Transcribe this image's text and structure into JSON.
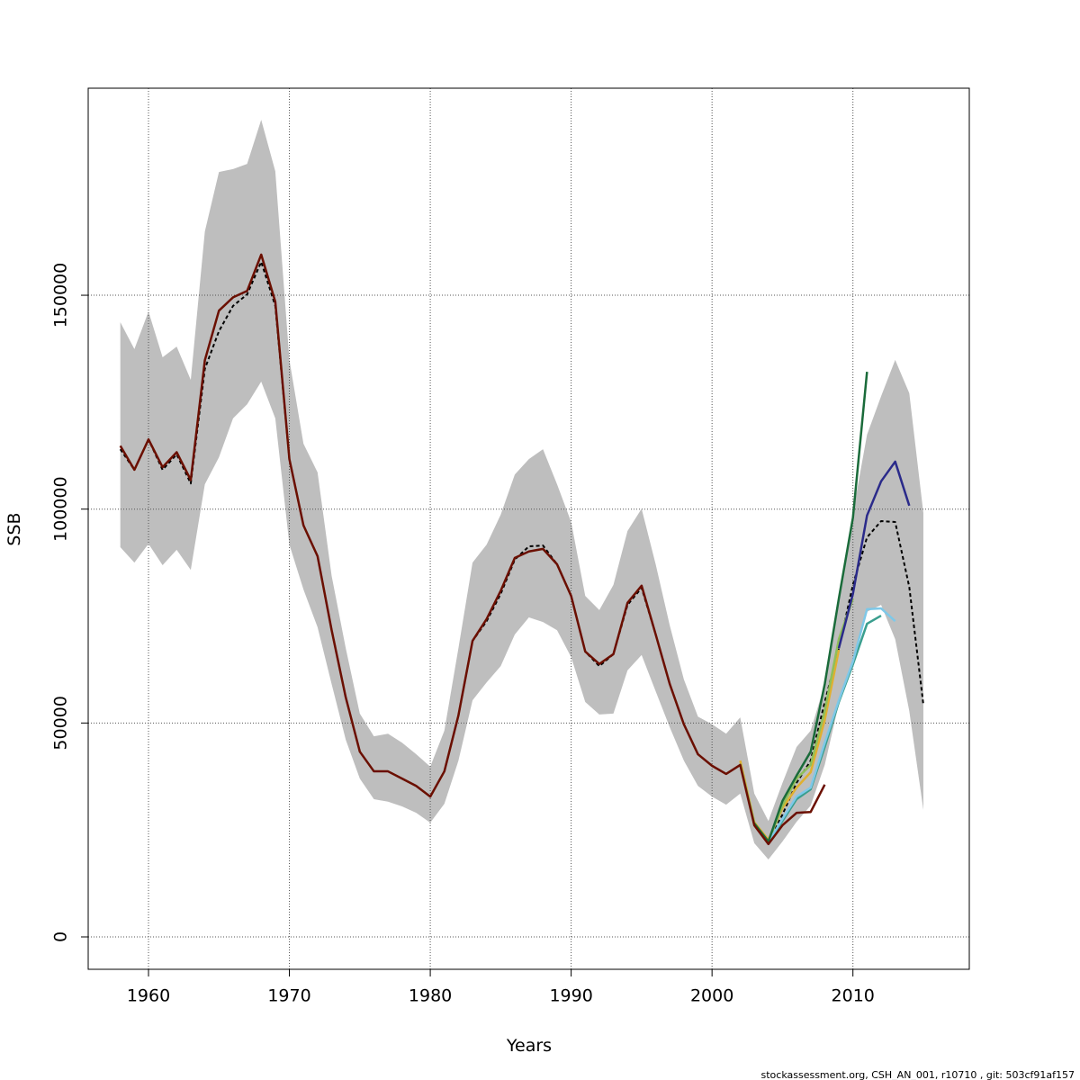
{
  "chart_data": {
    "type": "line",
    "x_label": "Years",
    "y_label": "SSB",
    "footer": "stockassessment.org, CSH_AN_001, r10710 , git: 503cf91af157",
    "xlim": [
      1955.72,
      2018.26
    ],
    "ylim": [
      -7574,
      198400
    ],
    "xticks": [
      1960,
      1970,
      1980,
      1990,
      2000,
      2010
    ],
    "yticks": [
      0,
      50000,
      100000,
      150000
    ],
    "grid": true,
    "x": [
      1958,
      1959,
      1960,
      1961,
      1962,
      1963,
      1964,
      1965,
      1966,
      1967,
      1968,
      1969,
      1970,
      1971,
      1972,
      1973,
      1974,
      1975,
      1976,
      1977,
      1978,
      1979,
      1980,
      1981,
      1982,
      1983,
      1984,
      1985,
      1986,
      1987,
      1988,
      1989,
      1990,
      1991,
      1992,
      1993,
      1994,
      1995,
      1996,
      1997,
      1998,
      1999,
      2000,
      2001,
      2002,
      2003,
      2004,
      2005,
      2006,
      2007,
      2008,
      2009,
      2010,
      2011,
      2012,
      2013,
      2014,
      2015
    ],
    "band": {
      "color": "#bebebe",
      "upper": [
        143700,
        137400,
        146200,
        135500,
        138000,
        130200,
        164900,
        178800,
        179500,
        180700,
        191000,
        179000,
        134900,
        115300,
        108600,
        84400,
        67500,
        52200,
        46900,
        47500,
        45400,
        42700,
        39800,
        48200,
        67500,
        87500,
        91700,
        98700,
        108100,
        111700,
        114000,
        105800,
        97000,
        79700,
        76400,
        82300,
        94900,
        100100,
        87100,
        72800,
        60200,
        51500,
        49700,
        47500,
        51300,
        33500,
        27100,
        36000,
        44400,
        48200,
        59100,
        80200,
        99100,
        117400,
        126400,
        134900,
        127100,
        99100
      ],
      "lower": [
        91100,
        87500,
        91900,
        86900,
        90500,
        85800,
        105800,
        112100,
        121200,
        124500,
        129800,
        121200,
        91700,
        81200,
        72400,
        59100,
        46100,
        37000,
        32200,
        31600,
        30500,
        29000,
        26700,
        31100,
        41200,
        55300,
        59500,
        63300,
        70700,
        74700,
        73600,
        71700,
        65400,
        54900,
        52000,
        52200,
        62300,
        65900,
        57400,
        49000,
        41200,
        35300,
        32800,
        30900,
        33500,
        21900,
        18100,
        22300,
        26900,
        30700,
        40200,
        54500,
        64400,
        76000,
        77600,
        69600,
        52800,
        29700
      ]
    },
    "series": [
      {
        "color": "#000000",
        "dashed": true,
        "values": [
          114000,
          109200,
          116300,
          109200,
          112800,
          106000,
          132800,
          141600,
          147500,
          150200,
          157800,
          147500,
          111700,
          96200,
          89000,
          71700,
          56000,
          43300,
          38700,
          38700,
          37000,
          35300,
          32800,
          38700,
          51800,
          69200,
          73800,
          80200,
          88200,
          91300,
          91500,
          87100,
          79700,
          66700,
          63300,
          66100,
          77600,
          81600,
          70700,
          59100,
          49700,
          42700,
          40000,
          38100,
          40200,
          26500,
          22100,
          28600,
          36000,
          41200,
          54900,
          67500,
          82300,
          93400,
          97200,
          97000,
          81800,
          54300
        ]
      },
      {
        "color": "#e0b030",
        "values": [
          null,
          null,
          null,
          null,
          null,
          null,
          null,
          null,
          null,
          null,
          null,
          null,
          null,
          null,
          null,
          null,
          null,
          null,
          null,
          null,
          null,
          null,
          null,
          null,
          null,
          null,
          null,
          null,
          null,
          null,
          null,
          null,
          null,
          null,
          null,
          null,
          null,
          null,
          null,
          null,
          null,
          null,
          null,
          null,
          41200,
          26800,
          22700,
          30100,
          34900,
          38500,
          50700,
          67100,
          null,
          null,
          null,
          null,
          null,
          null
        ]
      },
      {
        "color": "#8fbf5a",
        "values": [
          null,
          null,
          null,
          null,
          null,
          null,
          null,
          null,
          null,
          null,
          null,
          null,
          null,
          null,
          null,
          null,
          null,
          null,
          null,
          null,
          null,
          null,
          null,
          null,
          null,
          null,
          null,
          null,
          null,
          null,
          null,
          null,
          null,
          null,
          null,
          null,
          null,
          null,
          null,
          null,
          null,
          null,
          null,
          null,
          40500,
          26600,
          22200,
          30700,
          37000,
          40200,
          52800,
          69600,
          79100,
          null,
          null,
          null,
          null,
          null
        ]
      },
      {
        "color": "#3a9e8e",
        "values": [
          null,
          null,
          null,
          null,
          null,
          null,
          null,
          null,
          null,
          null,
          null,
          null,
          null,
          null,
          null,
          null,
          null,
          null,
          null,
          null,
          null,
          null,
          null,
          null,
          null,
          null,
          null,
          null,
          null,
          null,
          null,
          null,
          null,
          null,
          null,
          null,
          null,
          null,
          null,
          null,
          null,
          null,
          null,
          null,
          null,
          26300,
          22100,
          27100,
          32200,
          34500,
          44400,
          54900,
          63700,
          73200,
          75100,
          null,
          null,
          null
        ]
      },
      {
        "color": "#7ec8e8",
        "values": [
          null,
          null,
          null,
          null,
          null,
          null,
          null,
          null,
          null,
          null,
          null,
          null,
          null,
          null,
          null,
          null,
          null,
          null,
          null,
          null,
          null,
          null,
          null,
          null,
          null,
          null,
          null,
          null,
          null,
          null,
          null,
          null,
          null,
          null,
          null,
          null,
          null,
          null,
          null,
          null,
          null,
          null,
          null,
          null,
          null,
          26300,
          22100,
          27600,
          32800,
          34900,
          45400,
          55300,
          64400,
          76600,
          76800,
          73800,
          null,
          null
        ]
      },
      {
        "color": "#1a6b3a",
        "values": [
          null,
          null,
          null,
          null,
          null,
          null,
          null,
          null,
          null,
          null,
          null,
          null,
          null,
          null,
          null,
          null,
          null,
          null,
          null,
          null,
          null,
          null,
          null,
          null,
          null,
          null,
          null,
          null,
          null,
          null,
          null,
          null,
          null,
          null,
          null,
          null,
          null,
          null,
          null,
          null,
          null,
          null,
          null,
          null,
          null,
          26500,
          22300,
          31800,
          37700,
          43300,
          59100,
          79100,
          98000,
          132100,
          null,
          null,
          null,
          null
        ]
      },
      {
        "color": "#2a2a8a",
        "values": [
          null,
          null,
          null,
          null,
          null,
          null,
          null,
          null,
          null,
          null,
          null,
          null,
          null,
          null,
          null,
          null,
          null,
          null,
          null,
          null,
          null,
          null,
          null,
          null,
          null,
          null,
          null,
          null,
          null,
          null,
          null,
          null,
          null,
          null,
          null,
          null,
          null,
          null,
          null,
          null,
          null,
          null,
          null,
          null,
          null,
          null,
          null,
          null,
          null,
          null,
          null,
          67500,
          80200,
          98500,
          106500,
          111100,
          100800,
          null
        ]
      },
      {
        "color": "#6b0f00",
        "values": [
          114800,
          109200,
          116300,
          109800,
          113300,
          106800,
          134800,
          146400,
          149500,
          151000,
          159500,
          148500,
          111700,
          96200,
          89000,
          71700,
          56000,
          43300,
          38700,
          38700,
          37000,
          35300,
          32800,
          38700,
          51800,
          69200,
          74300,
          80900,
          88600,
          90100,
          90700,
          87100,
          79700,
          66700,
          63800,
          66100,
          78100,
          82100,
          70700,
          59100,
          49700,
          42700,
          40000,
          38100,
          40200,
          26100,
          21700,
          26100,
          29000,
          29200,
          35600,
          null,
          null,
          null,
          null,
          null,
          null,
          null
        ]
      }
    ]
  }
}
